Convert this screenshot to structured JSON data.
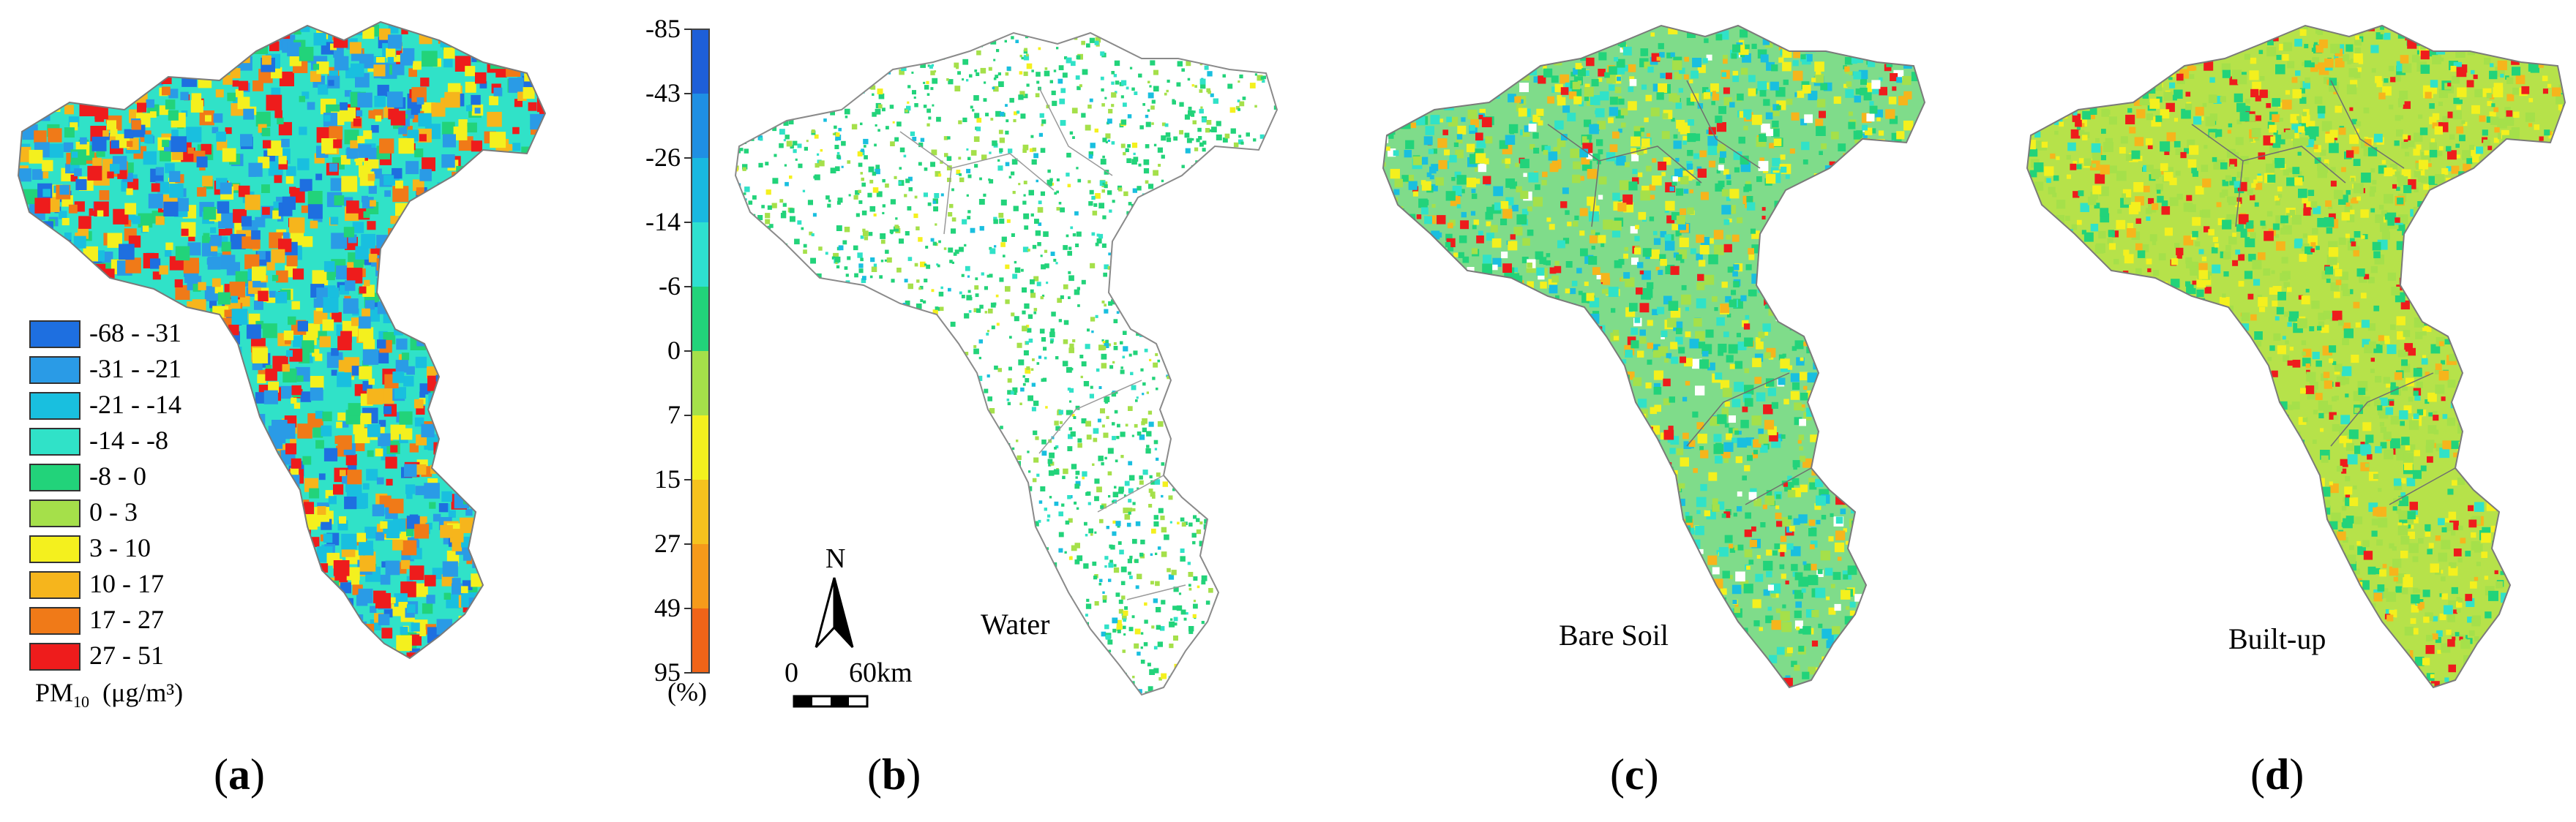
{
  "panels": [
    {
      "label_open": "(",
      "letter": "a",
      "label_close": ")"
    },
    {
      "label_open": "(",
      "letter": "b",
      "label_close": ")",
      "map_label": "Water"
    },
    {
      "label_open": "(",
      "letter": "c",
      "label_close": ")",
      "map_label": "Bare Soil"
    },
    {
      "label_open": "(",
      "letter": "d",
      "label_close": ")",
      "map_label": "Built-up"
    }
  ],
  "pm_legend": {
    "title_prefix": "PM",
    "title_sub": "10",
    "title_unit": "(μg/m³)",
    "classes": [
      {
        "label": "-68 - -31",
        "color": "#1e6fe0"
      },
      {
        "label": "-31 - -21",
        "color": "#2a9be6"
      },
      {
        "label": "-21 - -14",
        "color": "#19bfdf"
      },
      {
        "label": "-14 - -8",
        "color": "#30e2c8"
      },
      {
        "label": "-8 - 0",
        "color": "#22d37a"
      },
      {
        "label": "0 - 3",
        "color": "#a5e04a"
      },
      {
        "label": "3 - 10",
        "color": "#f4f01e"
      },
      {
        "label": "10 - 17",
        "color": "#f6b51c"
      },
      {
        "label": "17 - 27",
        "color": "#f07a18"
      },
      {
        "label": "27 - 51",
        "color": "#ee1c1c"
      }
    ]
  },
  "percent_scale": {
    "ticks": [
      "-85",
      "-43",
      "-26",
      "-14",
      "-6",
      "0",
      "7",
      "15",
      "27",
      "49",
      "95"
    ],
    "unit": "(%)",
    "colors": [
      "#1e5fd8",
      "#1f8fe3",
      "#19b8e0",
      "#2ee0cf",
      "#22d37a",
      "#a5e04a",
      "#f4f01e",
      "#f6c21e",
      "#f69a1a",
      "#f06418",
      "#ee1c1c"
    ]
  },
  "map_extras": {
    "north_label": "N",
    "scale_zero": "0",
    "scale_end": "60km"
  }
}
